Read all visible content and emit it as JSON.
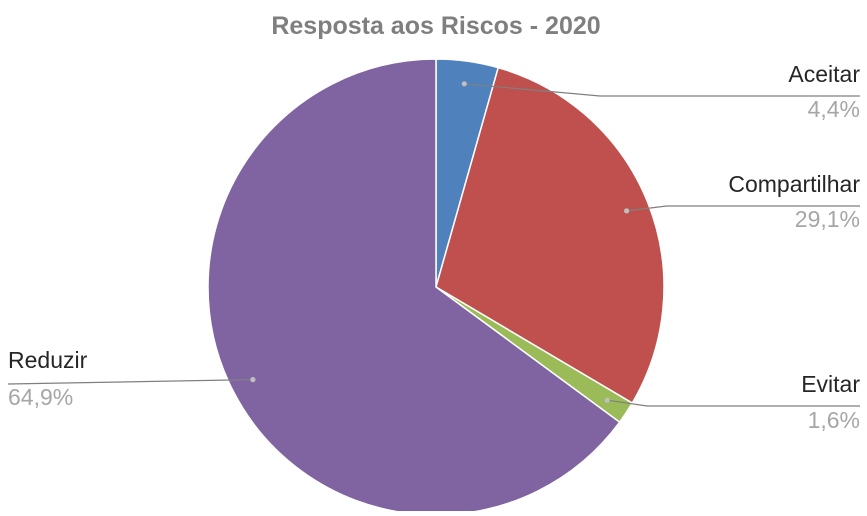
{
  "chart_data": {
    "type": "pie",
    "title": "Resposta aos Riscos - 2020",
    "slices": [
      {
        "label": "Aceitar",
        "value": 4.4,
        "value_text": "4,4%",
        "color": "#4f81bd"
      },
      {
        "label": "Compartilhar",
        "value": 29.1,
        "value_text": "29,1%",
        "color": "#c0504d"
      },
      {
        "label": "Evitar",
        "value": 1.6,
        "value_text": "1,6%",
        "color": "#9bbb59"
      },
      {
        "label": "Reduzir",
        "value": 64.9,
        "value_text": "64,9%",
        "color": "#8064a2"
      }
    ],
    "start_angle": "12 o'clock",
    "direction": "clockwise",
    "legend": "none",
    "leader_lines": true
  }
}
